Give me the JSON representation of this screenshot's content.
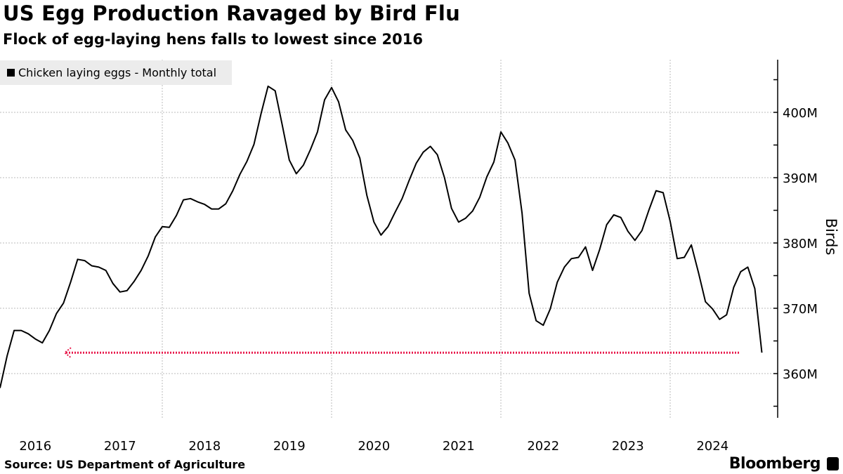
{
  "header": {
    "title": "US Egg Production Ravaged by Bird Flu",
    "subtitle": "Flock of egg-laying hens falls to lowest since 2016"
  },
  "footer": {
    "source": "Source: US Department of Agriculture",
    "brand": "Bloomberg"
  },
  "colors": {
    "line": "#000000",
    "annotation": "#e8194b",
    "legend_bg": "#ececec"
  },
  "chart_data": {
    "type": "line",
    "title": "US Egg Production Ravaged by Bird Flu",
    "subtitle": "Flock of egg-laying hens falls to lowest since 2016",
    "xlabel": "",
    "ylabel": "Birds",
    "ylim": [
      354,
      408
    ],
    "y_unit": "M",
    "yticks": [
      360,
      370,
      380,
      390,
      400
    ],
    "ytick_labels": [
      "360M",
      "370M",
      "380M",
      "390M",
      "400M"
    ],
    "xtick_labels": [
      "2016",
      "2017",
      "2018",
      "2019",
      "2020",
      "2021",
      "2022",
      "2023",
      "2024"
    ],
    "start_month": "2016-02",
    "frequency": "monthly",
    "grid": true,
    "legend": {
      "position": "top-left",
      "entries": [
        "Chicken laying eggs - Monthly total"
      ]
    },
    "annotation": {
      "type": "dotted-arrow",
      "value": 363.2,
      "meaning": "level of latest value, compared to 2016"
    },
    "series": [
      {
        "name": "Chicken laying eggs - Monthly total",
        "values": [
          357.8,
          362.7,
          366.6,
          366.6,
          366.1,
          365.3,
          364.7,
          366.6,
          369.2,
          370.8,
          374.0,
          377.5,
          377.3,
          376.5,
          376.3,
          375.8,
          373.8,
          372.5,
          372.7,
          374.1,
          375.8,
          378.0,
          380.9,
          382.5,
          382.4,
          384.2,
          386.6,
          386.8,
          386.3,
          385.9,
          385.2,
          385.2,
          386.0,
          388.0,
          390.5,
          392.5,
          395.1,
          399.8,
          404.0,
          403.3,
          398.1,
          392.7,
          390.6,
          391.9,
          394.3,
          397.0,
          401.9,
          403.8,
          401.6,
          397.3,
          395.7,
          393.0,
          387.3,
          383.2,
          381.2,
          382.5,
          384.7,
          386.8,
          389.6,
          392.2,
          393.9,
          394.8,
          393.5,
          390.0,
          385.3,
          383.2,
          383.8,
          384.9,
          387.0,
          390.1,
          392.4,
          397.0,
          395.3,
          392.7,
          384.6,
          372.3,
          368.1,
          367.4,
          369.9,
          374.0,
          376.3,
          377.6,
          377.8,
          379.4,
          375.8,
          379.0,
          382.8,
          384.3,
          383.9,
          381.8,
          380.4,
          381.9,
          385.1,
          388.0,
          387.7,
          383.3,
          377.6,
          377.8,
          379.7,
          375.5,
          371.0,
          369.9,
          368.3,
          369.0,
          373.2,
          375.6,
          376.3,
          373.0,
          363.2
        ]
      }
    ]
  }
}
